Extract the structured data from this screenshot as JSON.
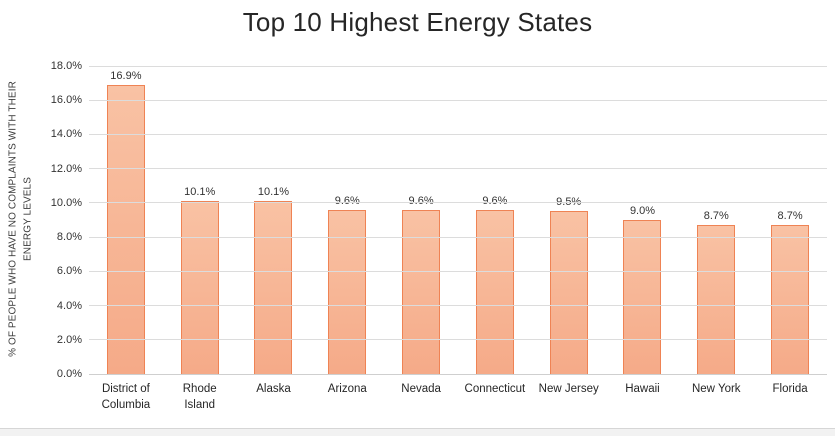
{
  "title": "Top 10 Highest Energy States",
  "y_axis_title_line1": "% OF PEOPLE WHO HAVE NO COMPLAINTS WITH THEIR",
  "y_axis_title_line2": "ENERGY LEVELS",
  "chart_data": {
    "type": "bar",
    "title": "Top 10 Highest Energy States",
    "categories": [
      "District of Columbia",
      "Rhode Island",
      "Alaska",
      "Arizona",
      "Nevada",
      "Connecticut",
      "New Jersey",
      "Hawaii",
      "New York",
      "Florida"
    ],
    "values": [
      16.9,
      10.1,
      10.1,
      9.6,
      9.6,
      9.6,
      9.5,
      9.0,
      8.7,
      8.7
    ],
    "data_labels": [
      "16.9%",
      "10.1%",
      "10.1%",
      "9.6%",
      "9.6%",
      "9.6%",
      "9.5%",
      "9.0%",
      "8.7%",
      "8.7%"
    ],
    "xlabel": "",
    "ylabel": "% OF PEOPLE WHO HAVE NO COMPLAINTS WITH THEIR ENERGY LEVELS",
    "y_ticks": [
      "0.0%",
      "2.0%",
      "4.0%",
      "6.0%",
      "8.0%",
      "10.0%",
      "12.0%",
      "14.0%",
      "16.0%",
      "18.0%"
    ],
    "ylim": [
      0,
      18
    ],
    "grid": true,
    "legend": "none",
    "colors": {
      "bar_fill_top": "#f9c2a4",
      "bar_fill_bottom": "#f5aa88",
      "bar_border": "#ef8354",
      "gridline": "#dcdcdc",
      "title_text": "#262626",
      "label_text": "#333333"
    }
  }
}
